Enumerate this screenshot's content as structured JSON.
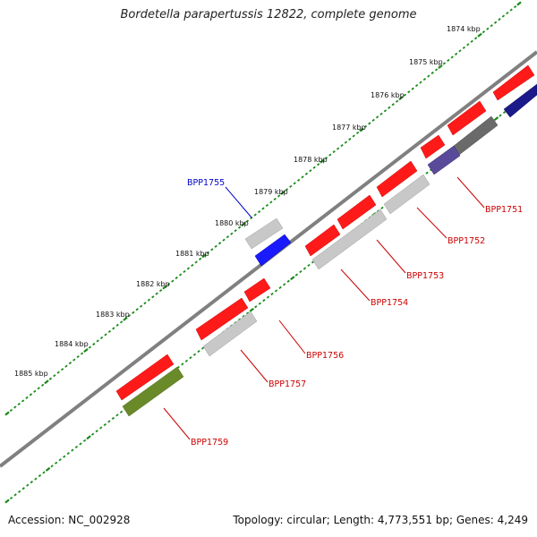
{
  "title": "Bordetella parapertussis 12822, complete genome",
  "accession": "Accession: NC_002928",
  "summary": "Topology: circular; Length: 4,773,551 bp; Genes: 4,249",
  "kbp_ticks": [
    "1874 kbp",
    "1875 kbp",
    "1876 kbp",
    "1877 kbp",
    "1878 kbp",
    "1879 kbp",
    "1880 kbp",
    "1881 kbp",
    "1882 kbp",
    "1883 kbp",
    "1884 kbp",
    "1885 kbp"
  ],
  "gene_labels": [
    "BPP1751",
    "BPP1752",
    "BPP1753",
    "BPP1754",
    "BPP1755",
    "BPP1756",
    "BPP1757",
    "BPP1759"
  ],
  "colors": {
    "backbone": "#808080",
    "tick": "#1a8a1a",
    "red": "#ff1a1a",
    "grey": "#c8c8c8",
    "darkgrey": "#6a6a6a",
    "blue": "#1a1aff",
    "purple": "#5a4a9a",
    "navy": "#1a1a8a",
    "olive": "#6a8a2a",
    "label_red": "#cc0000",
    "label_blue": "#0000cc"
  }
}
